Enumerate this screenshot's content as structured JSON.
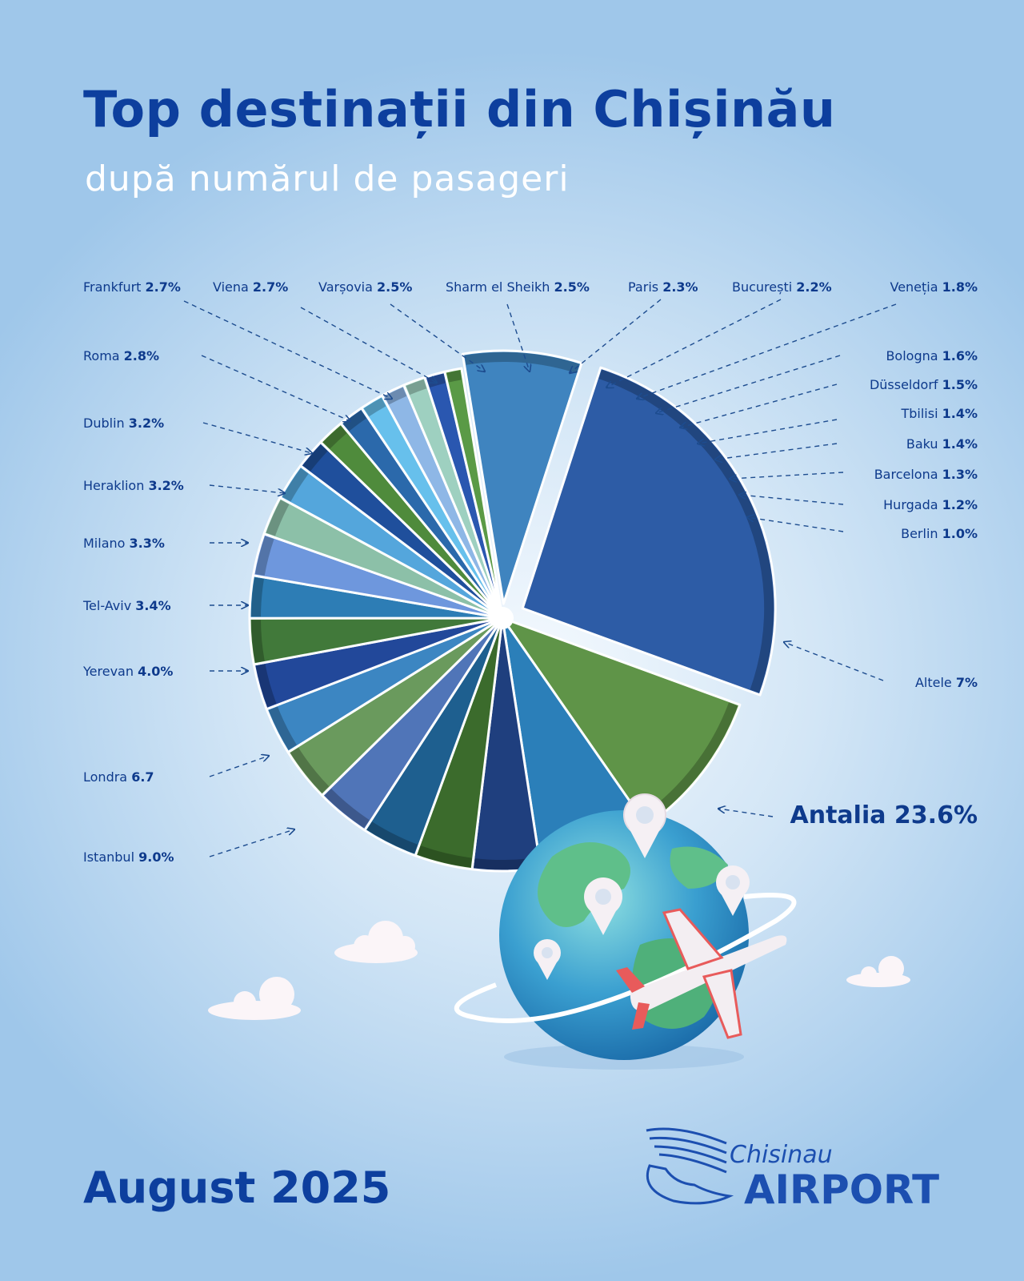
{
  "header": {
    "title": "Top destinații din Chișinău",
    "subtitle": "după numărul de pasageri"
  },
  "footer": {
    "month": "August 2025",
    "logo_line1": "Chisinau",
    "logo_line2": "AIRPORT"
  },
  "colors": {
    "title": "#0d3f9e",
    "label": "#0e3a8c",
    "palette": [
      "#2a5fa5",
      "#4a8ac2",
      "#6a9ee6",
      "#1d4c9c",
      "#3f7f36",
      "#66c3ee",
      "#7fb0dd",
      "#5b8a4a",
      "#2e6ca8",
      "#9ccae0"
    ]
  },
  "chart_data": {
    "type": "pie",
    "title": "Top destinații din Chișinău",
    "subtitle": "după numărul de pasageri",
    "slices": [
      {
        "label": "Antalia",
        "value": 23.6,
        "display": "23.6%",
        "color": "#2d5ca6"
      },
      {
        "label": "Istanbul",
        "value": 9.0,
        "display": "9.0%",
        "color": "#5f9448"
      },
      {
        "label": "Londra",
        "value": 6.7,
        "display": "6.7",
        "color": "#2b7fb9"
      },
      {
        "label": "Yerevan",
        "value": 4.0,
        "display": "4.0%",
        "color": "#1f3f7e"
      },
      {
        "label": "Tel-Aviv",
        "value": 3.4,
        "display": "3.4%",
        "color": "#3b6b2c"
      },
      {
        "label": "Milano",
        "value": 3.3,
        "display": "3.3%",
        "color": "#1e5f8f"
      },
      {
        "label": "Heraklion",
        "value": 3.2,
        "display": "3.2%",
        "color": "#5075b8"
      },
      {
        "label": "Dublin",
        "value": 3.2,
        "display": "3.2%",
        "color": "#6a9a5d"
      },
      {
        "label": "Roma",
        "value": 2.8,
        "display": "2.8%",
        "color": "#3c86c2"
      },
      {
        "label": "Frankfurt",
        "value": 2.7,
        "display": "2.7%",
        "color": "#22489a"
      },
      {
        "label": "Viena",
        "value": 2.7,
        "display": "2.7%",
        "color": "#41793a"
      },
      {
        "label": "Varșovia",
        "value": 2.5,
        "display": "2.5%",
        "color": "#2d7db5"
      },
      {
        "label": "Sharm el Sheikh",
        "value": 2.5,
        "display": "2.5%",
        "color": "#6e97dd"
      },
      {
        "label": "Paris",
        "value": 2.3,
        "display": "2.3%",
        "color": "#8cc0a8"
      },
      {
        "label": "București",
        "value": 2.2,
        "display": "2.2%",
        "color": "#54a6dc"
      },
      {
        "label": "Veneția",
        "value": 1.8,
        "display": "1.8%",
        "color": "#1f4f9c"
      },
      {
        "label": "Bologna",
        "value": 1.6,
        "display": "1.6%",
        "color": "#4f8b3c"
      },
      {
        "label": "Düsseldorf",
        "value": 1.5,
        "display": "1.5%",
        "color": "#2b69ab"
      },
      {
        "label": "Tbilisi",
        "value": 1.4,
        "display": "1.4%",
        "color": "#67c0ec"
      },
      {
        "label": "Baku",
        "value": 1.4,
        "display": "1.4%",
        "color": "#8eb7e6"
      },
      {
        "label": "Barcelona",
        "value": 1.3,
        "display": "1.3%",
        "color": "#9ed0c0"
      },
      {
        "label": "Hurgada",
        "value": 1.2,
        "display": "1.2%",
        "color": "#2a57b0"
      },
      {
        "label": "Berlin",
        "value": 1.0,
        "display": "1.0%",
        "color": "#5a9a46"
      },
      {
        "label": "Altele",
        "value": 7,
        "display": "7%",
        "color": "#3f84bf"
      }
    ]
  }
}
